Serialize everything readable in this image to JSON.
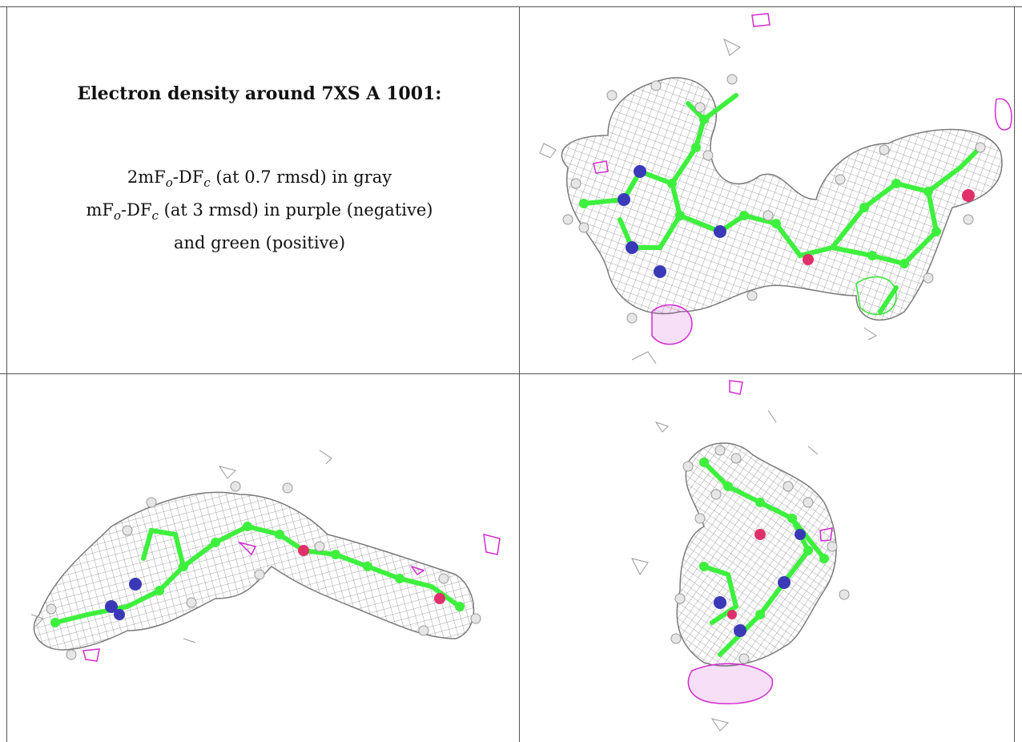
{
  "title": "Electron density around 7XS A 1001:",
  "legend": {
    "line1_prefix": "2mF",
    "line1_sub_o": "o",
    "line1_mid": "-DF",
    "line1_sub_c": "c",
    "line1_suffix": " (at 0.7 rmsd) in gray",
    "line2_prefix": "mF",
    "line2_sub_o": "o",
    "line2_mid": "-DF",
    "line2_sub_c": "c",
    "line2_suffix": " (at 3 rmsd) in purple (negative)",
    "line3": "and green (positive)"
  },
  "colors": {
    "mesh_gray": "#9a9a9a",
    "negative_purple": "#d22bd2",
    "positive_green": "#33e833",
    "carbon_green": "#3ef03e",
    "nitrogen_blue": "#3a3ab8",
    "oxygen_red": "#e0306a",
    "hydrogen_white": "#e6e6e6"
  },
  "panels": [
    {
      "view": "top-right"
    },
    {
      "view": "bottom-left"
    },
    {
      "view": "bottom-right"
    }
  ]
}
